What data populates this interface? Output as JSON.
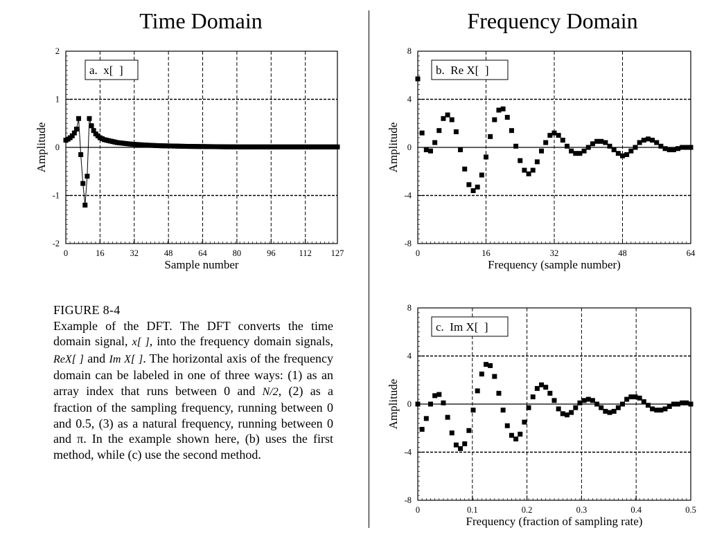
{
  "headings": {
    "time": "Time Domain",
    "frequency": "Frequency Domain"
  },
  "caption": {
    "label": "FIGURE 8-4",
    "parts": [
      "Example of the DFT. The DFT converts the time domain signal, ",
      "x[ ]",
      ", into the frequency domain signals, ",
      "ReX[ ]",
      " and ",
      "Im X[ ]",
      ".  The horizontal axis of the frequency domain can be labeled in one of three ways: (1) as an array index that runs between 0 and ",
      "N/2",
      ", (2) as a fraction of the sampling frequency, running between 0 and 0.5, (3) as a natural frequency, running between 0 and ",
      "π",
      ".  In the example shown here,  (b) uses the first method, while (c) use the second method."
    ]
  },
  "chart_data": [
    {
      "id": "a",
      "type": "scatter",
      "box_label": "a.  x[  ]",
      "xlabel": "Sample number",
      "ylabel": "Amplitude",
      "xlim": [
        0,
        127
      ],
      "ylim": [
        -2,
        2
      ],
      "xticks": [
        0,
        16,
        32,
        48,
        64,
        80,
        96,
        112,
        127
      ],
      "yticks": [
        -2,
        -1,
        0,
        1,
        2
      ],
      "xtick_labels": [
        "0",
        "16",
        "32",
        "48",
        "64",
        "80",
        "96",
        "112",
        "127"
      ],
      "ytick_labels": [
        "-2",
        "-1",
        "0",
        "1",
        "2"
      ],
      "dashed_x": [
        16,
        32,
        48,
        64,
        80,
        96,
        112
      ],
      "dashed_y": [
        -1,
        1
      ],
      "connect_line": true,
      "y": [
        0.15,
        0.17,
        0.2,
        0.24,
        0.3,
        0.38,
        0.6,
        -0.15,
        -0.75,
        -1.2,
        -0.6,
        0.6,
        0.45,
        0.35,
        0.28,
        0.24,
        0.2,
        0.18,
        0.16,
        0.15,
        0.14,
        0.13,
        0.12,
        0.11,
        0.1,
        0.095,
        0.09,
        0.085,
        0.08,
        0.075,
        0.07,
        0.066,
        0.063,
        0.06,
        0.057,
        0.054,
        0.051,
        0.048,
        0.046,
        0.044,
        0.042,
        0.04,
        0.038,
        0.036,
        0.034,
        0.033,
        0.032,
        0.031,
        0.03,
        0.029,
        0.028,
        0.027,
        0.026,
        0.025,
        0.024,
        0.023,
        0.022,
        0.021,
        0.02,
        0.02,
        0.019,
        0.019,
        0.018,
        0.018,
        0.017,
        0.017,
        0.016,
        0.016,
        0.015,
        0.015,
        0.014,
        0.014,
        0.013,
        0.013,
        0.012,
        0.012,
        0.012,
        0.011,
        0.011,
        0.011,
        0.01,
        0.01,
        0.01,
        0.01,
        0.01,
        0.01,
        0.01,
        0.01,
        0.01,
        0.01,
        0.01,
        0.01,
        0.01,
        0.01,
        0.01,
        0.01,
        0.01,
        0.01,
        0.01,
        0.01,
        0.01,
        0.01,
        0.01,
        0.01,
        0.01,
        0.01,
        0.01,
        0.01,
        0.01,
        0.01,
        0.01,
        0.01,
        0.01,
        0.01,
        0.01,
        0.01,
        0.01,
        0.01,
        0.01,
        0.01,
        0.01,
        0.01,
        0.01,
        0.01,
        0.01,
        0.01,
        0.01,
        0.01
      ]
    },
    {
      "id": "b",
      "type": "scatter",
      "box_label": "b.  Re X[  ]",
      "xlabel": "Frequency (sample number)",
      "ylabel": "Amplitude",
      "xlim": [
        0,
        64
      ],
      "ylim": [
        -8,
        8
      ],
      "xticks": [
        0,
        16,
        32,
        48,
        64
      ],
      "yticks": [
        -8,
        -4,
        0,
        4,
        8
      ],
      "xtick_labels": [
        "0",
        "16",
        "32",
        "48",
        "64"
      ],
      "ytick_labels": [
        "-8",
        "-4",
        "0",
        "4",
        "8"
      ],
      "dashed_x": [
        16,
        32,
        48
      ],
      "dashed_y": [
        -4,
        4
      ],
      "connect_line": false,
      "y": [
        5.7,
        1.2,
        -0.2,
        -0.3,
        0.4,
        1.4,
        2.4,
        2.7,
        2.3,
        1.3,
        -0.2,
        -1.8,
        -3.1,
        -3.6,
        -3.3,
        -2.3,
        -0.8,
        0.9,
        2.3,
        3.1,
        3.2,
        2.5,
        1.4,
        0.1,
        -1.1,
        -1.9,
        -2.2,
        -1.9,
        -1.2,
        -0.3,
        0.4,
        1.0,
        1.2,
        1.0,
        0.6,
        0.1,
        -0.3,
        -0.5,
        -0.5,
        -0.3,
        0.0,
        0.3,
        0.5,
        0.5,
        0.4,
        0.1,
        -0.2,
        -0.5,
        -0.7,
        -0.6,
        -0.3,
        0.0,
        0.4,
        0.6,
        0.7,
        0.6,
        0.4,
        0.1,
        -0.1,
        -0.2,
        -0.2,
        -0.1,
        0.0,
        0.0,
        0.0
      ]
    },
    {
      "id": "c",
      "type": "scatter",
      "box_label": "c.  Im X[  ]",
      "xlabel": "Frequency (fraction of sampling rate)",
      "ylabel": "Amplitude",
      "xlim": [
        0,
        0.5
      ],
      "ylim": [
        -8,
        8
      ],
      "xticks": [
        0,
        0.1,
        0.2,
        0.3,
        0.4,
        0.5
      ],
      "yticks": [
        -8,
        -4,
        0,
        4,
        8
      ],
      "xtick_labels": [
        "0",
        "0.1",
        "0.2",
        "0.3",
        "0.4",
        "0.5"
      ],
      "ytick_labels": [
        "-8",
        "-4",
        "0",
        "4",
        "8"
      ],
      "dashed_x": [
        0.1,
        0.2,
        0.3,
        0.4
      ],
      "dashed_y": [
        -4,
        4
      ],
      "connect_line": false,
      "x_step": 0.0078125,
      "y": [
        0.0,
        -2.1,
        -1.2,
        0.0,
        0.7,
        0.8,
        0.1,
        -1.1,
        -2.4,
        -3.4,
        -3.7,
        -3.3,
        -2.2,
        -0.5,
        1.1,
        2.5,
        3.3,
        3.2,
        2.3,
        0.9,
        -0.5,
        -1.8,
        -2.6,
        -2.9,
        -2.5,
        -1.5,
        -0.3,
        0.6,
        1.3,
        1.6,
        1.4,
        0.9,
        0.3,
        -0.4,
        -0.8,
        -0.9,
        -0.7,
        -0.3,
        0.1,
        0.3,
        0.4,
        0.3,
        0.0,
        -0.3,
        -0.6,
        -0.7,
        -0.6,
        -0.3,
        0.0,
        0.4,
        0.6,
        0.6,
        0.5,
        0.2,
        -0.1,
        -0.4,
        -0.5,
        -0.5,
        -0.4,
        -0.2,
        0.0,
        0.0,
        0.1,
        0.1,
        0.0
      ]
    }
  ]
}
